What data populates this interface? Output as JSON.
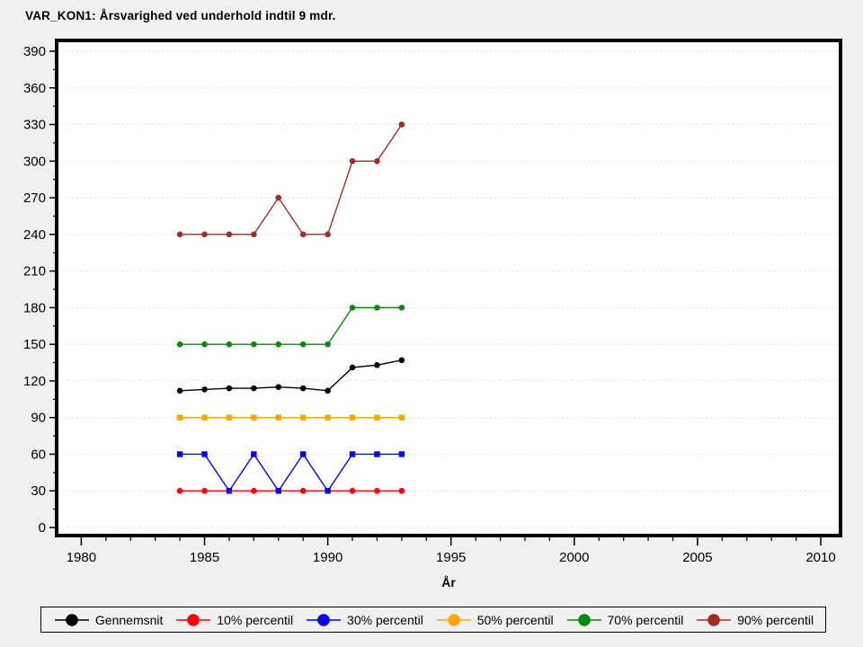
{
  "page": {
    "background_color": "#F0F0F0",
    "plot_background_color": "#FFFFFF"
  },
  "chart_data": {
    "type": "line",
    "title": "VAR_KON1: Årsvarighed ved underhold indtil 9 mdr.",
    "xlabel": "År",
    "ylabel": "",
    "x": [
      1984,
      1985,
      1986,
      1987,
      1988,
      1989,
      1990,
      1991,
      1992,
      1993
    ],
    "series": [
      {
        "name": "Gennemsnit",
        "color": "#000000",
        "marker": "circle",
        "values": [
          112,
          113,
          114,
          114,
          115,
          114,
          112,
          131,
          133,
          137
        ]
      },
      {
        "name": "10% percentil",
        "color": "#FF0000",
        "marker": "circle",
        "values": [
          30,
          30,
          30,
          30,
          30,
          30,
          30,
          30,
          30,
          30
        ]
      },
      {
        "name": "30% percentil",
        "color": "#0000FF",
        "marker": "square",
        "values": [
          60,
          60,
          30,
          60,
          30,
          60,
          30,
          60,
          60,
          60
        ]
      },
      {
        "name": "50% percentil",
        "color": "#FFA500",
        "marker": "square",
        "values": [
          90,
          90,
          90,
          90,
          90,
          90,
          90,
          90,
          90,
          90
        ]
      },
      {
        "name": "70% percentil",
        "color": "#0A8A0A",
        "marker": "circle",
        "values": [
          150,
          150,
          150,
          150,
          150,
          150,
          150,
          180,
          180,
          180
        ]
      },
      {
        "name": "90% percentil",
        "color": "#A52A2A",
        "marker": "circle",
        "values": [
          240,
          240,
          240,
          240,
          270,
          240,
          240,
          300,
          300,
          330
        ]
      }
    ],
    "xaxis": {
      "range": [
        1979,
        2010.8
      ],
      "major_ticks": [
        1980,
        1985,
        1990,
        1995,
        2000,
        2005,
        2010
      ],
      "minor_tick_interval": 1
    },
    "yaxis": {
      "range": [
        0,
        390
      ],
      "major_tick_interval": 30,
      "minor_tick_interval": 15,
      "major_ticks": [
        0,
        30,
        60,
        90,
        120,
        150,
        180,
        210,
        240,
        270,
        300,
        330,
        360,
        390
      ]
    },
    "grid": {
      "horizontal_gridlines": true,
      "color": "#E1E1E1",
      "style": "dotted"
    },
    "legend": {
      "position": "bottom",
      "entries": [
        "Gennemsnit",
        "10% percentil",
        "30% percentil",
        "50% percentil",
        "70% percentil",
        "90% percentil"
      ]
    }
  }
}
